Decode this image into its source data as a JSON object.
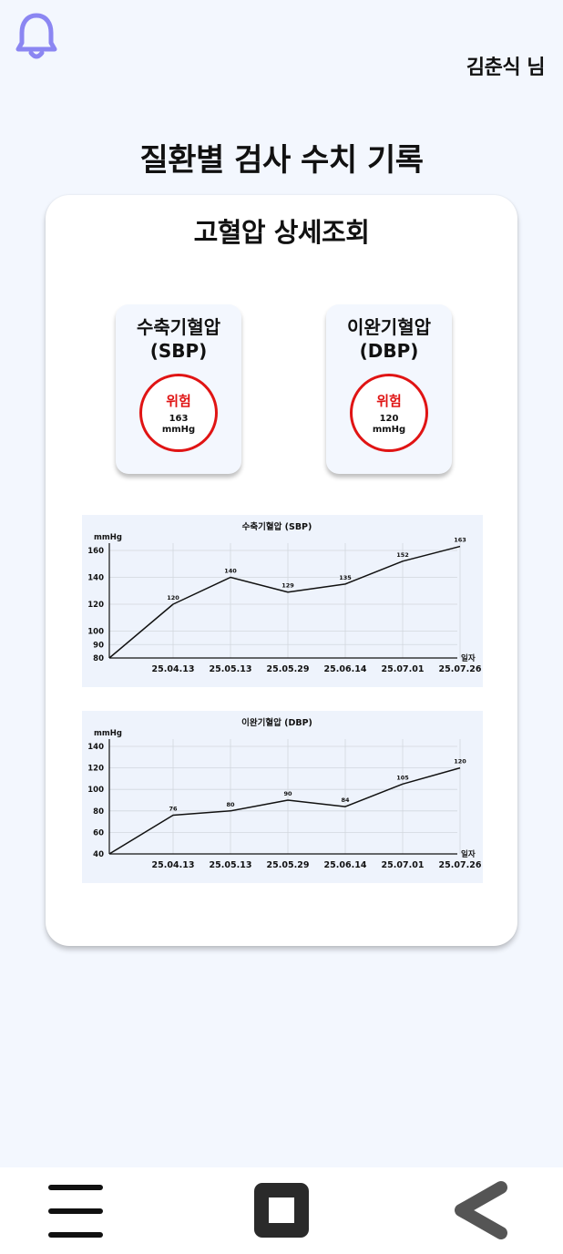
{
  "header": {
    "user_name": "김춘식 님",
    "icon": "bell-icon"
  },
  "page_title": "질환별 검사 수치 기록",
  "card": {
    "title": "고혈압 상세조회",
    "metrics": [
      {
        "name_line1": "수축기혈압",
        "name_line2": "(SBP)",
        "status": "위험",
        "value": "163",
        "unit": "mmHg"
      },
      {
        "name_line1": "이완기혈압",
        "name_line2": "(DBP)",
        "status": "위험",
        "value": "120",
        "unit": "mmHg"
      }
    ]
  },
  "colors": {
    "background": "#f3f7fe",
    "card": "#ffffff",
    "danger": "#e01414",
    "chart_bg": "#eef3fc",
    "grid": "#d2d7de",
    "line": "#111111"
  },
  "chart_data": [
    {
      "type": "line",
      "title": "수축기혈압 (SBP)",
      "xlabel": "일자",
      "ylabel": "mmHg",
      "categories": [
        "25.04.13",
        "25.05.13",
        "25.05.29",
        "25.06.14",
        "25.07.01",
        "25.07.26"
      ],
      "series": [
        {
          "values": [
            120,
            140,
            129,
            135,
            152,
            163
          ]
        }
      ],
      "line_start": 80,
      "ylim": [
        80,
        160
      ],
      "yticks": [
        80,
        90,
        100,
        120,
        140,
        160
      ],
      "grid": true,
      "legend": "none"
    },
    {
      "type": "line",
      "title": "이완기혈압 (DBP)",
      "xlabel": "일자",
      "ylabel": "mmHg",
      "categories": [
        "25.04.13",
        "25.05.13",
        "25.05.29",
        "25.06.14",
        "25.07.01",
        "25.07.26"
      ],
      "series": [
        {
          "values": [
            76,
            80,
            90,
            84,
            105,
            120
          ]
        }
      ],
      "line_start": 40,
      "ylim": [
        40,
        140
      ],
      "yticks": [
        40,
        60,
        80,
        100,
        120,
        140
      ],
      "grid": true,
      "legend": "none"
    }
  ],
  "nav": {
    "menu_icon": "menu-icon",
    "home_icon": "home-square-icon",
    "back_icon": "back-chevron-icon"
  }
}
